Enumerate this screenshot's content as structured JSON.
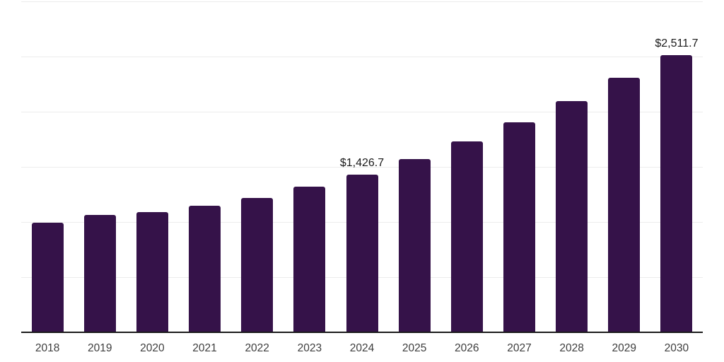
{
  "chart_data": {
    "type": "bar",
    "title": "",
    "xlabel": "",
    "ylabel": "",
    "categories": [
      "2018",
      "2019",
      "2020",
      "2021",
      "2022",
      "2023",
      "2024",
      "2025",
      "2026",
      "2027",
      "2028",
      "2029",
      "2030"
    ],
    "values": [
      988,
      1058,
      1084,
      1145,
      1217,
      1318,
      1426.7,
      1566,
      1727,
      1899,
      2090,
      2302,
      2511.7
    ],
    "data_labels": {
      "2024": "$1,426.7",
      "2030": "$2,511.7"
    },
    "ylim": [
      0,
      3000
    ],
    "gridline_step": 500,
    "grid": true,
    "legend_position": "none",
    "y_axis_tick_labels_visible": false,
    "colors": {
      "bar": "#351249",
      "axis_line": "#1a1a1a",
      "gridline": "#ececec",
      "tick_label": "#3d3d3d",
      "data_label": "#1a1a1a",
      "background": "#ffffff"
    }
  }
}
